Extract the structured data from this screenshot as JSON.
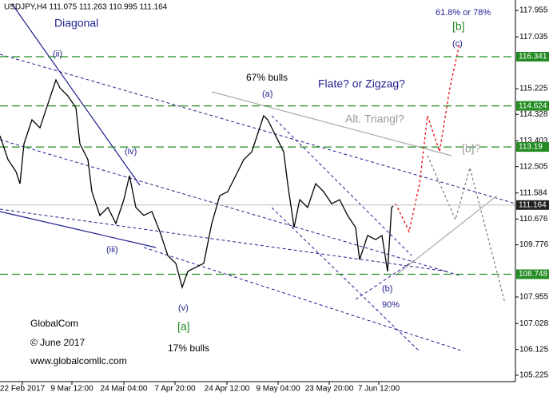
{
  "chart_data": {
    "type": "line",
    "title": "USDJPY,H4  111.075 111.263 110.995 111.164",
    "xlim": [
      0,
      645
    ],
    "ylim": [
      105.0,
      118.32
    ],
    "xticks": [
      {
        "value": 28,
        "label": "22 Feb 2017"
      },
      {
        "value": 90,
        "label": "9 Mar 12:00"
      },
      {
        "value": 155,
        "label": "24 Mar 04:00"
      },
      {
        "value": 219,
        "label": "7 Apr 20:00"
      },
      {
        "value": 284,
        "label": "24 Apr 12:00"
      },
      {
        "value": 348,
        "label": "9 May 04:00"
      },
      {
        "value": 412,
        "label": "23 May 20:00"
      },
      {
        "value": 474,
        "label": "7 Jun 12:00"
      }
    ],
    "yticks": [
      117.955,
      117.035,
      115.225,
      114.328,
      113.403,
      112.505,
      111.584,
      110.676,
      109.776,
      107.955,
      107.028,
      106.125,
      105.225
    ],
    "levels": [
      {
        "value": 116.341,
        "color": "#228b22"
      },
      {
        "value": 114.624,
        "color": "#228b22"
      },
      {
        "value": 113.19,
        "color": "#228b22"
      },
      {
        "value": 108.748,
        "color": "#228b22"
      },
      {
        "value": 111.164,
        "color": "#333333"
      }
    ],
    "series": [
      {
        "name": "USDJPY",
        "color": "#000000",
        "x": [
          0,
          10,
          20,
          25,
          30,
          40,
          50,
          60,
          70,
          75,
          85,
          95,
          100,
          110,
          115,
          125,
          135,
          145,
          155,
          162,
          170,
          180,
          190,
          200,
          210,
          220,
          228,
          235,
          245,
          255,
          265,
          275,
          285,
          295,
          305,
          315,
          320,
          330,
          335,
          345,
          355,
          360,
          368,
          375,
          385,
          395,
          405,
          415,
          425,
          435,
          445,
          450,
          460,
          470,
          478,
          485,
          490,
          492
        ],
        "values": [
          113.58,
          112.75,
          112.33,
          111.91,
          113.3,
          114.14,
          113.86,
          114.7,
          115.53,
          115.25,
          114.97,
          114.56,
          113.3,
          112.75,
          111.63,
          110.8,
          111.08,
          110.52,
          111.35,
          112.19,
          111.08,
          110.8,
          110.94,
          110.24,
          109.4,
          109.13,
          108.29,
          108.85,
          108.99,
          109.13,
          110.52,
          111.49,
          111.63,
          112.19,
          112.75,
          113.02,
          113.44,
          114.28,
          114.14,
          113.58,
          113.02,
          111.91,
          110.38,
          111.35,
          111.08,
          111.91,
          111.63,
          111.21,
          111.35,
          110.8,
          110.38,
          109.26,
          110.1,
          109.96,
          110.1,
          108.85,
          111.08,
          111.13
        ]
      }
    ],
    "annotations": [
      "Diagonal",
      "(ii)",
      "(iv)",
      "(iii)",
      "(v)",
      "[a]",
      "67% bulls",
      "(a)",
      "Flate? or Zigzag?",
      "Alt. Triangl?",
      "61.8% or 78%",
      "[b]",
      "(c)",
      "[b]?",
      "(b)",
      "90%",
      "17% bulls",
      "GlobalCom",
      "© June 2017",
      "www.globalcomllc.com"
    ]
  }
}
